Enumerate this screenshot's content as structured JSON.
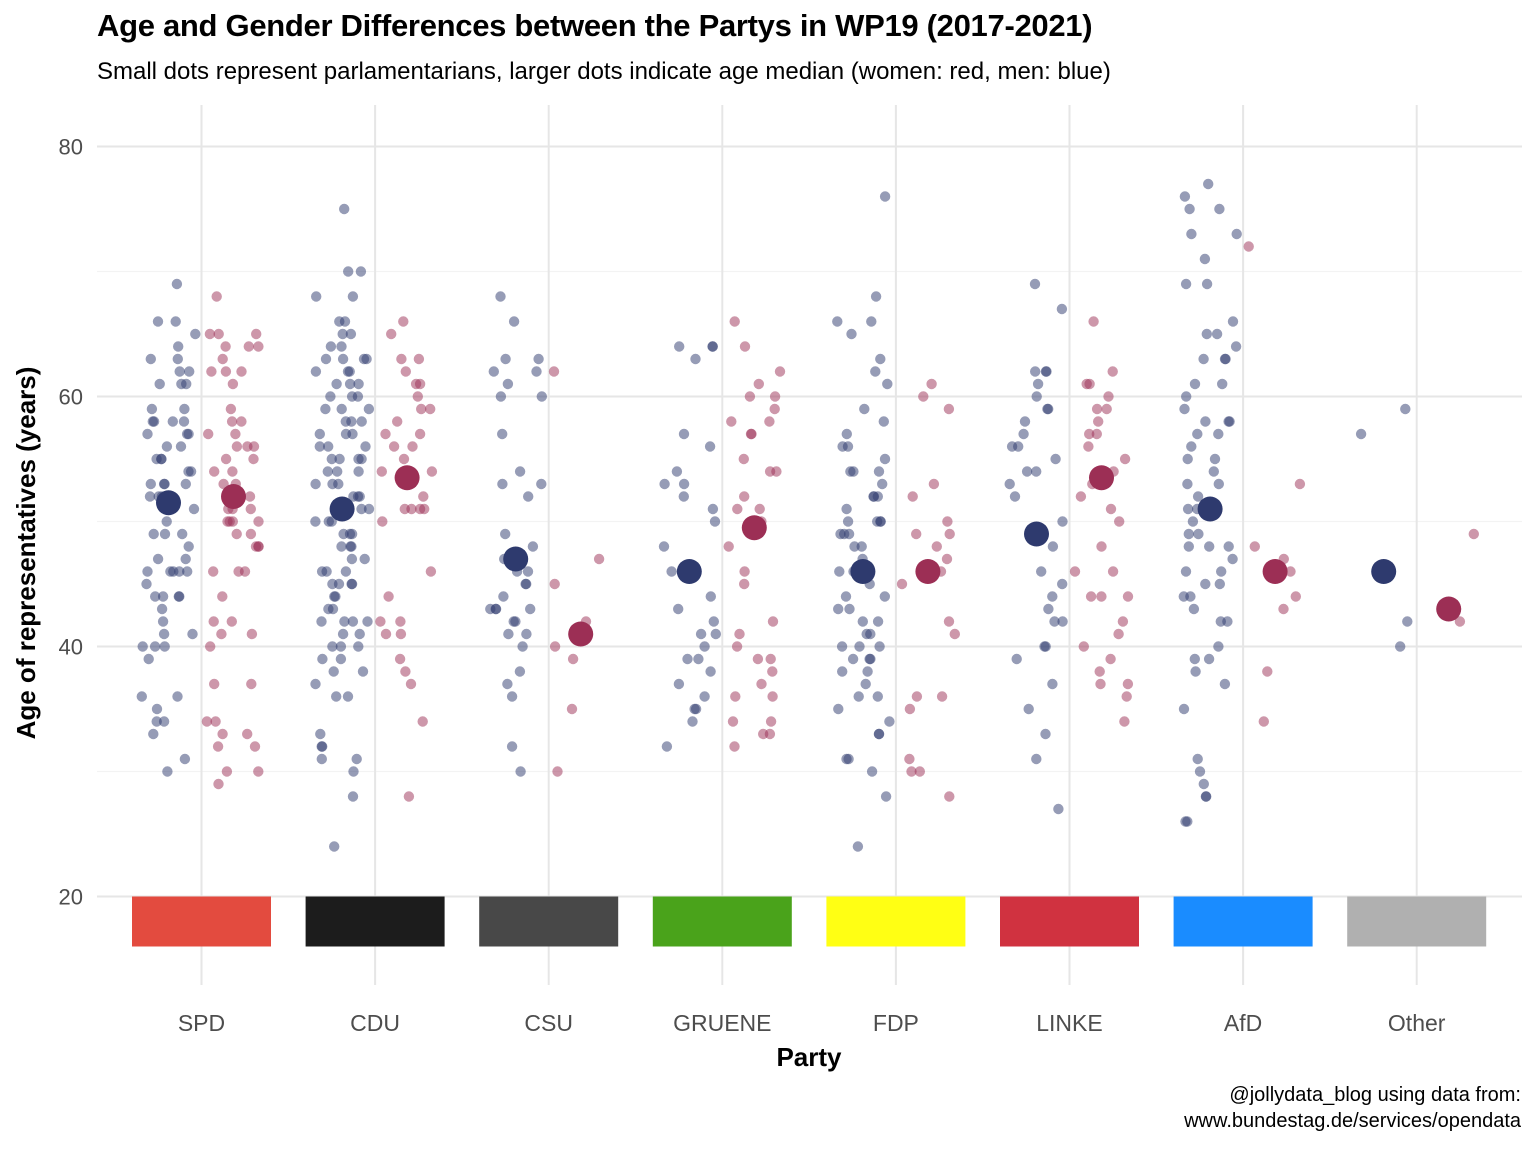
{
  "chart_data": {
    "type": "scatter",
    "title": "Age and Gender Differences between the Partys in WP19 (2017-2021)",
    "subtitle": "Small dots represent parlamentarians, larger dots indicate age median (women: red, men: blue)",
    "xlabel": "Party",
    "ylabel": "Age of representatives (years)",
    "ylim": [
      16,
      82
    ],
    "yticks": [
      20,
      40,
      60,
      80
    ],
    "grid": true,
    "categories": [
      "SPD",
      "CDU",
      "CSU",
      "GRUENE",
      "FDP",
      "LINKE",
      "AfD",
      "Other"
    ],
    "party_colors": [
      "#e34b3f",
      "#1c1c1c",
      "#484848",
      "#4aa31b",
      "#ffff14",
      "#d03240",
      "#1a8cff",
      "#b0b0b0"
    ],
    "series": [
      {
        "gender": "men",
        "color": "#2e3a6e",
        "median_age": [
          51.5,
          51,
          47,
          46,
          46,
          49,
          51,
          46
        ],
        "ages": [
          [
            69,
            66,
            66,
            65,
            64,
            63,
            63,
            62,
            62,
            61,
            61,
            61,
            59,
            59,
            58,
            58,
            58,
            58,
            57,
            57,
            57,
            56,
            56,
            55,
            55,
            55,
            54,
            54,
            53,
            53,
            53,
            53,
            52,
            52,
            52,
            51,
            51,
            50,
            49,
            49,
            49,
            48,
            47,
            47,
            46,
            46,
            46,
            46,
            46,
            45,
            44,
            44,
            44,
            44,
            43,
            42,
            41,
            41,
            40,
            40,
            40,
            39,
            36,
            36,
            35,
            34,
            34,
            33,
            31,
            30
          ],
          [
            75,
            70,
            70,
            68,
            68,
            66,
            66,
            65,
            65,
            64,
            64,
            63,
            63,
            63,
            63,
            62,
            62,
            62,
            61,
            61,
            61,
            60,
            60,
            60,
            59,
            59,
            59,
            58,
            58,
            58,
            57,
            57,
            57,
            56,
            56,
            56,
            55,
            55,
            55,
            55,
            54,
            54,
            54,
            53,
            53,
            53,
            52,
            52,
            52,
            51,
            51,
            51,
            50,
            50,
            50,
            49,
            49,
            49,
            48,
            48,
            48,
            47,
            47,
            46,
            46,
            46,
            45,
            45,
            45,
            45,
            44,
            44,
            43,
            43,
            42,
            42,
            42,
            42,
            41,
            41,
            40,
            40,
            40,
            39,
            39,
            38,
            38,
            37,
            36,
            36,
            33,
            32,
            32,
            31,
            31,
            30,
            28,
            24
          ],
          [
            68,
            66,
            63,
            63,
            62,
            62,
            61,
            60,
            60,
            57,
            54,
            53,
            53,
            52,
            49,
            48,
            47,
            47,
            46,
            46,
            45,
            45,
            44,
            43,
            43,
            43,
            43,
            42,
            42,
            41,
            41,
            40,
            38,
            37,
            36,
            32,
            30
          ],
          [
            64,
            64,
            64,
            63,
            57,
            56,
            54,
            53,
            53,
            52,
            51,
            50,
            48,
            46,
            46,
            46,
            44,
            43,
            42,
            41,
            41,
            40,
            39,
            39,
            38,
            37,
            36,
            35,
            35,
            34,
            32
          ],
          [
            76,
            68,
            66,
            66,
            65,
            63,
            62,
            61,
            59,
            58,
            57,
            56,
            56,
            55,
            54,
            54,
            54,
            53,
            52,
            52,
            52,
            51,
            50,
            50,
            50,
            50,
            49,
            49,
            49,
            48,
            48,
            47,
            46,
            46,
            45,
            44,
            44,
            43,
            43,
            42,
            42,
            41,
            41,
            40,
            40,
            40,
            39,
            39,
            39,
            38,
            38,
            37,
            36,
            36,
            35,
            34,
            33,
            33,
            31,
            31,
            30,
            28,
            24
          ],
          [
            69,
            67,
            62,
            62,
            62,
            61,
            60,
            59,
            59,
            58,
            57,
            56,
            56,
            55,
            54,
            54,
            53,
            52,
            50,
            48,
            46,
            45,
            44,
            43,
            42,
            42,
            40,
            40,
            39,
            37,
            35,
            33,
            31,
            27
          ],
          [
            77,
            76,
            75,
            75,
            73,
            73,
            71,
            69,
            69,
            66,
            65,
            65,
            64,
            63,
            63,
            63,
            61,
            61,
            60,
            59,
            58,
            58,
            58,
            57,
            57,
            56,
            55,
            55,
            54,
            53,
            53,
            52,
            51,
            51,
            50,
            49,
            49,
            48,
            48,
            48,
            47,
            46,
            46,
            45,
            45,
            44,
            44,
            43,
            42,
            42,
            40,
            39,
            39,
            38,
            37,
            35,
            31,
            30,
            29,
            28,
            28,
            26,
            26
          ],
          [
            59,
            57,
            46,
            42,
            40
          ]
        ]
      },
      {
        "gender": "women",
        "color": "#9c2f55",
        "median_age": [
          52,
          53.5,
          41,
          49.5,
          46,
          53.5,
          46,
          43
        ],
        "ages": [
          [
            68,
            65,
            65,
            65,
            64,
            64,
            64,
            63,
            62,
            62,
            62,
            61,
            59,
            58,
            58,
            57,
            57,
            56,
            56,
            56,
            55,
            55,
            54,
            54,
            53,
            53,
            52,
            52,
            51,
            51,
            51,
            50,
            50,
            50,
            50,
            49,
            49,
            48,
            48,
            48,
            46,
            46,
            46,
            44,
            42,
            42,
            41,
            41,
            40,
            37,
            37,
            34,
            34,
            33,
            33,
            32,
            32,
            30,
            30,
            29
          ],
          [
            66,
            65,
            63,
            63,
            62,
            61,
            61,
            60,
            59,
            59,
            58,
            57,
            57,
            56,
            56,
            55,
            54,
            54,
            53,
            52,
            51,
            51,
            51,
            51,
            50,
            46,
            44,
            42,
            42,
            41,
            41,
            39,
            38,
            37,
            34,
            28
          ],
          [
            62,
            47,
            45,
            42,
            40,
            39,
            35,
            30
          ],
          [
            66,
            64,
            62,
            61,
            60,
            60,
            59,
            58,
            58,
            57,
            57,
            55,
            54,
            54,
            52,
            51,
            51,
            50,
            49,
            49,
            48,
            46,
            45,
            42,
            41,
            40,
            39,
            39,
            38,
            37,
            36,
            36,
            34,
            34,
            33,
            33,
            32
          ],
          [
            61,
            60,
            59,
            53,
            52,
            50,
            49,
            49,
            48,
            47,
            46,
            45,
            42,
            41,
            36,
            36,
            35,
            31,
            30,
            30,
            28
          ],
          [
            66,
            62,
            61,
            61,
            60,
            59,
            59,
            58,
            57,
            57,
            56,
            55,
            54,
            53,
            52,
            51,
            50,
            48,
            46,
            46,
            44,
            44,
            44,
            42,
            41,
            40,
            39,
            38,
            37,
            37,
            36,
            34
          ],
          [
            72,
            53,
            48,
            47,
            46,
            44,
            43,
            38,
            34
          ],
          [
            49,
            43,
            42
          ]
        ]
      }
    ]
  },
  "caption": {
    "line1": "@jollydata_blog using data from:",
    "line2": "www.bundestag.de/services/opendata"
  }
}
